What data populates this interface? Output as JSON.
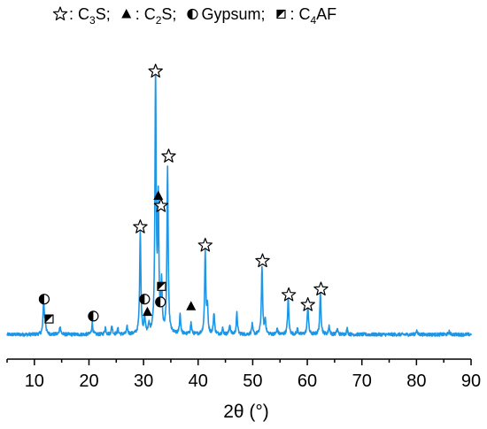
{
  "chart_data": {
    "type": "line",
    "title": "",
    "xlabel": "2θ (°)",
    "ylabel": "",
    "xlim": [
      5,
      90
    ],
    "xticks": [
      10,
      20,
      30,
      40,
      50,
      60,
      70,
      80,
      90
    ],
    "xtick_labels": [
      "10",
      "20",
      "30",
      "40",
      "50",
      "60",
      "70",
      "80",
      "90"
    ],
    "y_axis_shown": false,
    "grid": false,
    "line_color": "#1e96e6",
    "legend": {
      "placement": "top",
      "entries": [
        {
          "symbol": "star",
          "label": "C3S",
          "text": ": C",
          "sub": "3",
          "tail": "S;"
        },
        {
          "symbol": "triangle",
          "label": "C2S",
          "text": ": C",
          "sub": "2",
          "tail": "S;"
        },
        {
          "symbol": "half-circle",
          "label": "Gypsum",
          "text": " Gypsum;"
        },
        {
          "symbol": "half-square",
          "label": "C4AF",
          "text": ": C",
          "sub": "4",
          "tail": "AF"
        }
      ]
    },
    "baseline": 3,
    "peaks": [
      [
        11.7,
        24
      ],
      [
        12.0,
        8
      ],
      [
        14.7,
        6
      ],
      [
        20.6,
        8
      ],
      [
        23.0,
        5
      ],
      [
        24.2,
        6
      ],
      [
        25.3,
        4
      ],
      [
        27.0,
        5
      ],
      [
        29.4,
        73
      ],
      [
        30.2,
        12
      ],
      [
        31.0,
        6
      ],
      [
        32.2,
        182
      ],
      [
        32.7,
        90
      ],
      [
        33.3,
        35
      ],
      [
        34.4,
        118
      ],
      [
        36.7,
        14
      ],
      [
        38.7,
        8
      ],
      [
        41.3,
        58
      ],
      [
        41.7,
        18
      ],
      [
        42.9,
        15
      ],
      [
        44.5,
        4
      ],
      [
        45.8,
        7
      ],
      [
        47.1,
        15
      ],
      [
        49.9,
        7
      ],
      [
        51.7,
        48
      ],
      [
        52.3,
        10
      ],
      [
        54.5,
        4
      ],
      [
        56.5,
        26
      ],
      [
        58.2,
        4
      ],
      [
        60.1,
        21
      ],
      [
        62.4,
        30
      ],
      [
        64.0,
        6
      ],
      [
        65.5,
        4
      ],
      [
        67.3,
        4
      ],
      [
        80.0,
        3
      ],
      [
        86.0,
        2
      ]
    ],
    "markers": [
      {
        "symbol": "star",
        "x": 32.2,
        "y": 189
      },
      {
        "symbol": "star",
        "x": 34.6,
        "y": 129
      },
      {
        "symbol": "star",
        "x": 33.2,
        "y": 94
      },
      {
        "symbol": "triangle",
        "x": 32.7,
        "y": 101
      },
      {
        "symbol": "star",
        "x": 29.4,
        "y": 79
      },
      {
        "symbol": "star",
        "x": 41.3,
        "y": 66
      },
      {
        "symbol": "star",
        "x": 51.8,
        "y": 55
      },
      {
        "symbol": "star",
        "x": 56.6,
        "y": 31
      },
      {
        "symbol": "star",
        "x": 60.1,
        "y": 24
      },
      {
        "symbol": "star",
        "x": 62.5,
        "y": 35
      },
      {
        "symbol": "half-square",
        "x": 33.3,
        "y": 37
      },
      {
        "symbol": "half-circle",
        "x": 33.1,
        "y": 26
      },
      {
        "symbol": "half-circle",
        "x": 30.2,
        "y": 28
      },
      {
        "symbol": "triangle",
        "x": 30.7,
        "y": 19
      },
      {
        "symbol": "triangle",
        "x": 38.7,
        "y": 23
      },
      {
        "symbol": "half-circle",
        "x": 11.8,
        "y": 28
      },
      {
        "symbol": "half-square",
        "x": 12.7,
        "y": 14
      },
      {
        "symbol": "half-circle",
        "x": 20.8,
        "y": 16
      }
    ]
  }
}
